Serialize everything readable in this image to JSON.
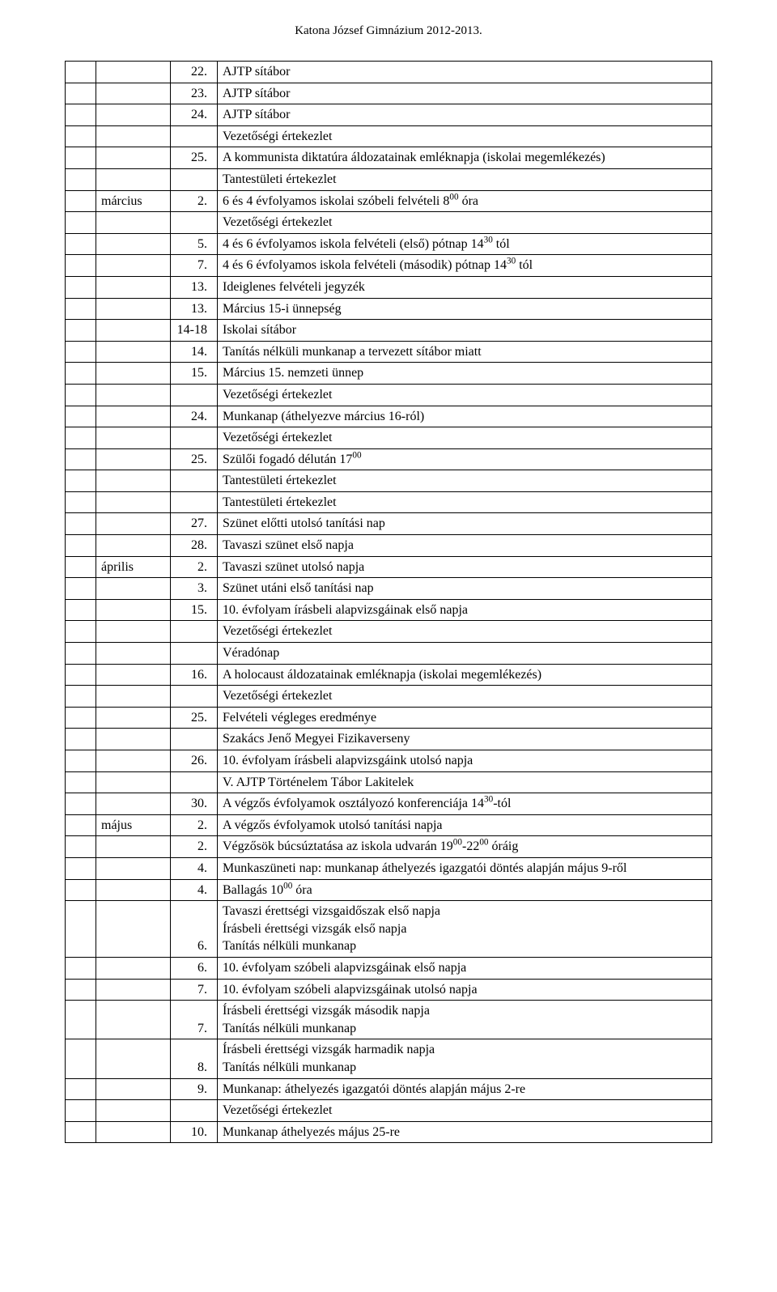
{
  "header": "Katona József Gimnázium 2012-2013.",
  "colors": {
    "text": "#000000",
    "background": "#ffffff",
    "border": "#000000"
  },
  "fontsize_header": 15,
  "fontsize_body": 16,
  "rows": [
    {
      "c2": "",
      "c3": "22.",
      "c4": "AJTP sítábor"
    },
    {
      "c2": "",
      "c3": "23.",
      "c4": "AJTP sítábor"
    },
    {
      "c2": "",
      "c3": "24.",
      "c4": "AJTP sítábor"
    },
    {
      "c2": "",
      "c3": "",
      "c4": "Vezetőségi értekezlet"
    },
    {
      "c2": "",
      "c3": "25.",
      "c4": "A kommunista diktatúra áldozatainak emléknapja (iskolai megemlékezés)"
    },
    {
      "c2": "",
      "c3": "",
      "c4": "Tantestületi értekezlet"
    },
    {
      "c2": "március",
      "c3": "2.",
      "c4": "6 és 4 évfolyamos iskolai szóbeli felvételi 8<sup>00</sup> óra"
    },
    {
      "c2": "",
      "c3": "",
      "c4": "Vezetőségi értekezlet"
    },
    {
      "c2": "",
      "c3": "5.",
      "c4": "4 és 6 évfolyamos iskola felvételi (első) pótnap 14<sup>30</sup> tól"
    },
    {
      "c2": "",
      "c3": "7.",
      "c4": "4 és 6 évfolyamos iskola felvételi (második) pótnap 14<sup>30</sup> tól"
    },
    {
      "c2": "",
      "c3": "13.",
      "c4": "Ideiglenes felvételi jegyzék"
    },
    {
      "c2": "",
      "c3": "13.",
      "c4": "Március 15-i ünnepség"
    },
    {
      "c2": "",
      "c3": "14-18",
      "c4": "Iskolai sítábor"
    },
    {
      "c2": "",
      "c3": "14.",
      "c4": "Tanítás nélküli munkanap a tervezett sítábor miatt"
    },
    {
      "c2": "",
      "c3": "15.",
      "c4": "Március 15. nemzeti ünnep"
    },
    {
      "c2": "",
      "c3": "",
      "c4": "Vezetőségi értekezlet"
    },
    {
      "c2": "",
      "c3": "24.",
      "c4": "Munkanap (áthelyezve március 16-ról)"
    },
    {
      "c2": "",
      "c3": "",
      "c4": "Vezetőségi értekezlet"
    },
    {
      "c2": "",
      "c3": "25.",
      "c4": "Szülői fogadó délután 17<sup>00</sup>"
    },
    {
      "c2": "",
      "c3": "",
      "c4": "Tantestületi értekezlet"
    },
    {
      "c2": "",
      "c3": "",
      "c4": "Tantestületi értekezlet"
    },
    {
      "c2": "",
      "c3": "27.",
      "c4": "Szünet előtti utolsó tanítási nap"
    },
    {
      "c2": "",
      "c3": "28.",
      "c4": "Tavaszi szünet első napja"
    },
    {
      "c2": "április",
      "c3": "2.",
      "c4": "Tavaszi szünet utolsó napja"
    },
    {
      "c2": "",
      "c3": "3.",
      "c4": "Szünet utáni első tanítási nap"
    },
    {
      "c2": "",
      "c3": "15.",
      "c4": "10. évfolyam írásbeli alapvizsgáinak első napja"
    },
    {
      "c2": "",
      "c3": "",
      "c4": "Vezetőségi értekezlet"
    },
    {
      "c2": "",
      "c3": "",
      "c4": "Véradónap"
    },
    {
      "c2": "",
      "c3": "16.",
      "c4": "A holocaust áldozatainak emléknapja (iskolai megemlékezés)"
    },
    {
      "c2": "",
      "c3": "",
      "c4": "Vezetőségi értekezlet"
    },
    {
      "c2": "",
      "c3": "25.",
      "c4": "Felvételi végleges eredménye"
    },
    {
      "c2": "",
      "c3": "",
      "c4": "Szakács Jenő Megyei Fizikaverseny"
    },
    {
      "c2": "",
      "c3": "26.",
      "c4": "10. évfolyam írásbeli alapvizsgáink utolsó napja"
    },
    {
      "c2": "",
      "c3": "",
      "c4": "V. AJTP Történelem Tábor Lakitelek"
    },
    {
      "c2": "",
      "c3": "30.",
      "c4": "A végzős évfolyamok osztályozó konferenciája 14<sup>30</sup>-tól"
    },
    {
      "c2": "május",
      "c3": "2.",
      "c4": "A végzős évfolyamok utolsó tanítási napja"
    },
    {
      "c2": "",
      "c3": "2.",
      "c4": "Végzősök búcsúztatása az iskola udvarán 19<sup>00</sup>-22<sup>00</sup> óráig"
    },
    {
      "c2": "",
      "c3": "4.",
      "c4": "Munkaszüneti nap: munkanap áthelyezés igazgatói döntés alapján május 9-ről"
    },
    {
      "c2": "",
      "c3": "4.",
      "c4": "Ballagás 10<sup>00</sup> óra"
    },
    {
      "c2": "",
      "c3": "6.",
      "c4": "Tavaszi érettségi vizsgaidőszak első napja<br>Írásbeli érettségi vizsgák első napja<br>Tanítás nélküli munkanap"
    },
    {
      "c2": "",
      "c3": "6.",
      "c4": "10. évfolyam szóbeli alapvizsgáinak első napja"
    },
    {
      "c2": "",
      "c3": "7.",
      "c4": "10. évfolyam szóbeli alapvizsgáinak utolsó napja"
    },
    {
      "c2": "",
      "c3": "7.",
      "c4": "Írásbeli érettségi vizsgák második napja<br>Tanítás nélküli munkanap"
    },
    {
      "c2": "",
      "c3": "8.",
      "c4": "Írásbeli érettségi vizsgák harmadik napja<br>Tanítás nélküli munkanap"
    },
    {
      "c2": "",
      "c3": "9.",
      "c4": "Munkanap: áthelyezés igazgatói döntés alapján május 2-re"
    },
    {
      "c2": "",
      "c3": "",
      "c4": "Vezetőségi értekezlet"
    },
    {
      "c2": "",
      "c3": "10.",
      "c4": "Munkanap áthelyezés május 25-re"
    }
  ],
  "numAlignRows": [
    37,
    39,
    42,
    43
  ]
}
